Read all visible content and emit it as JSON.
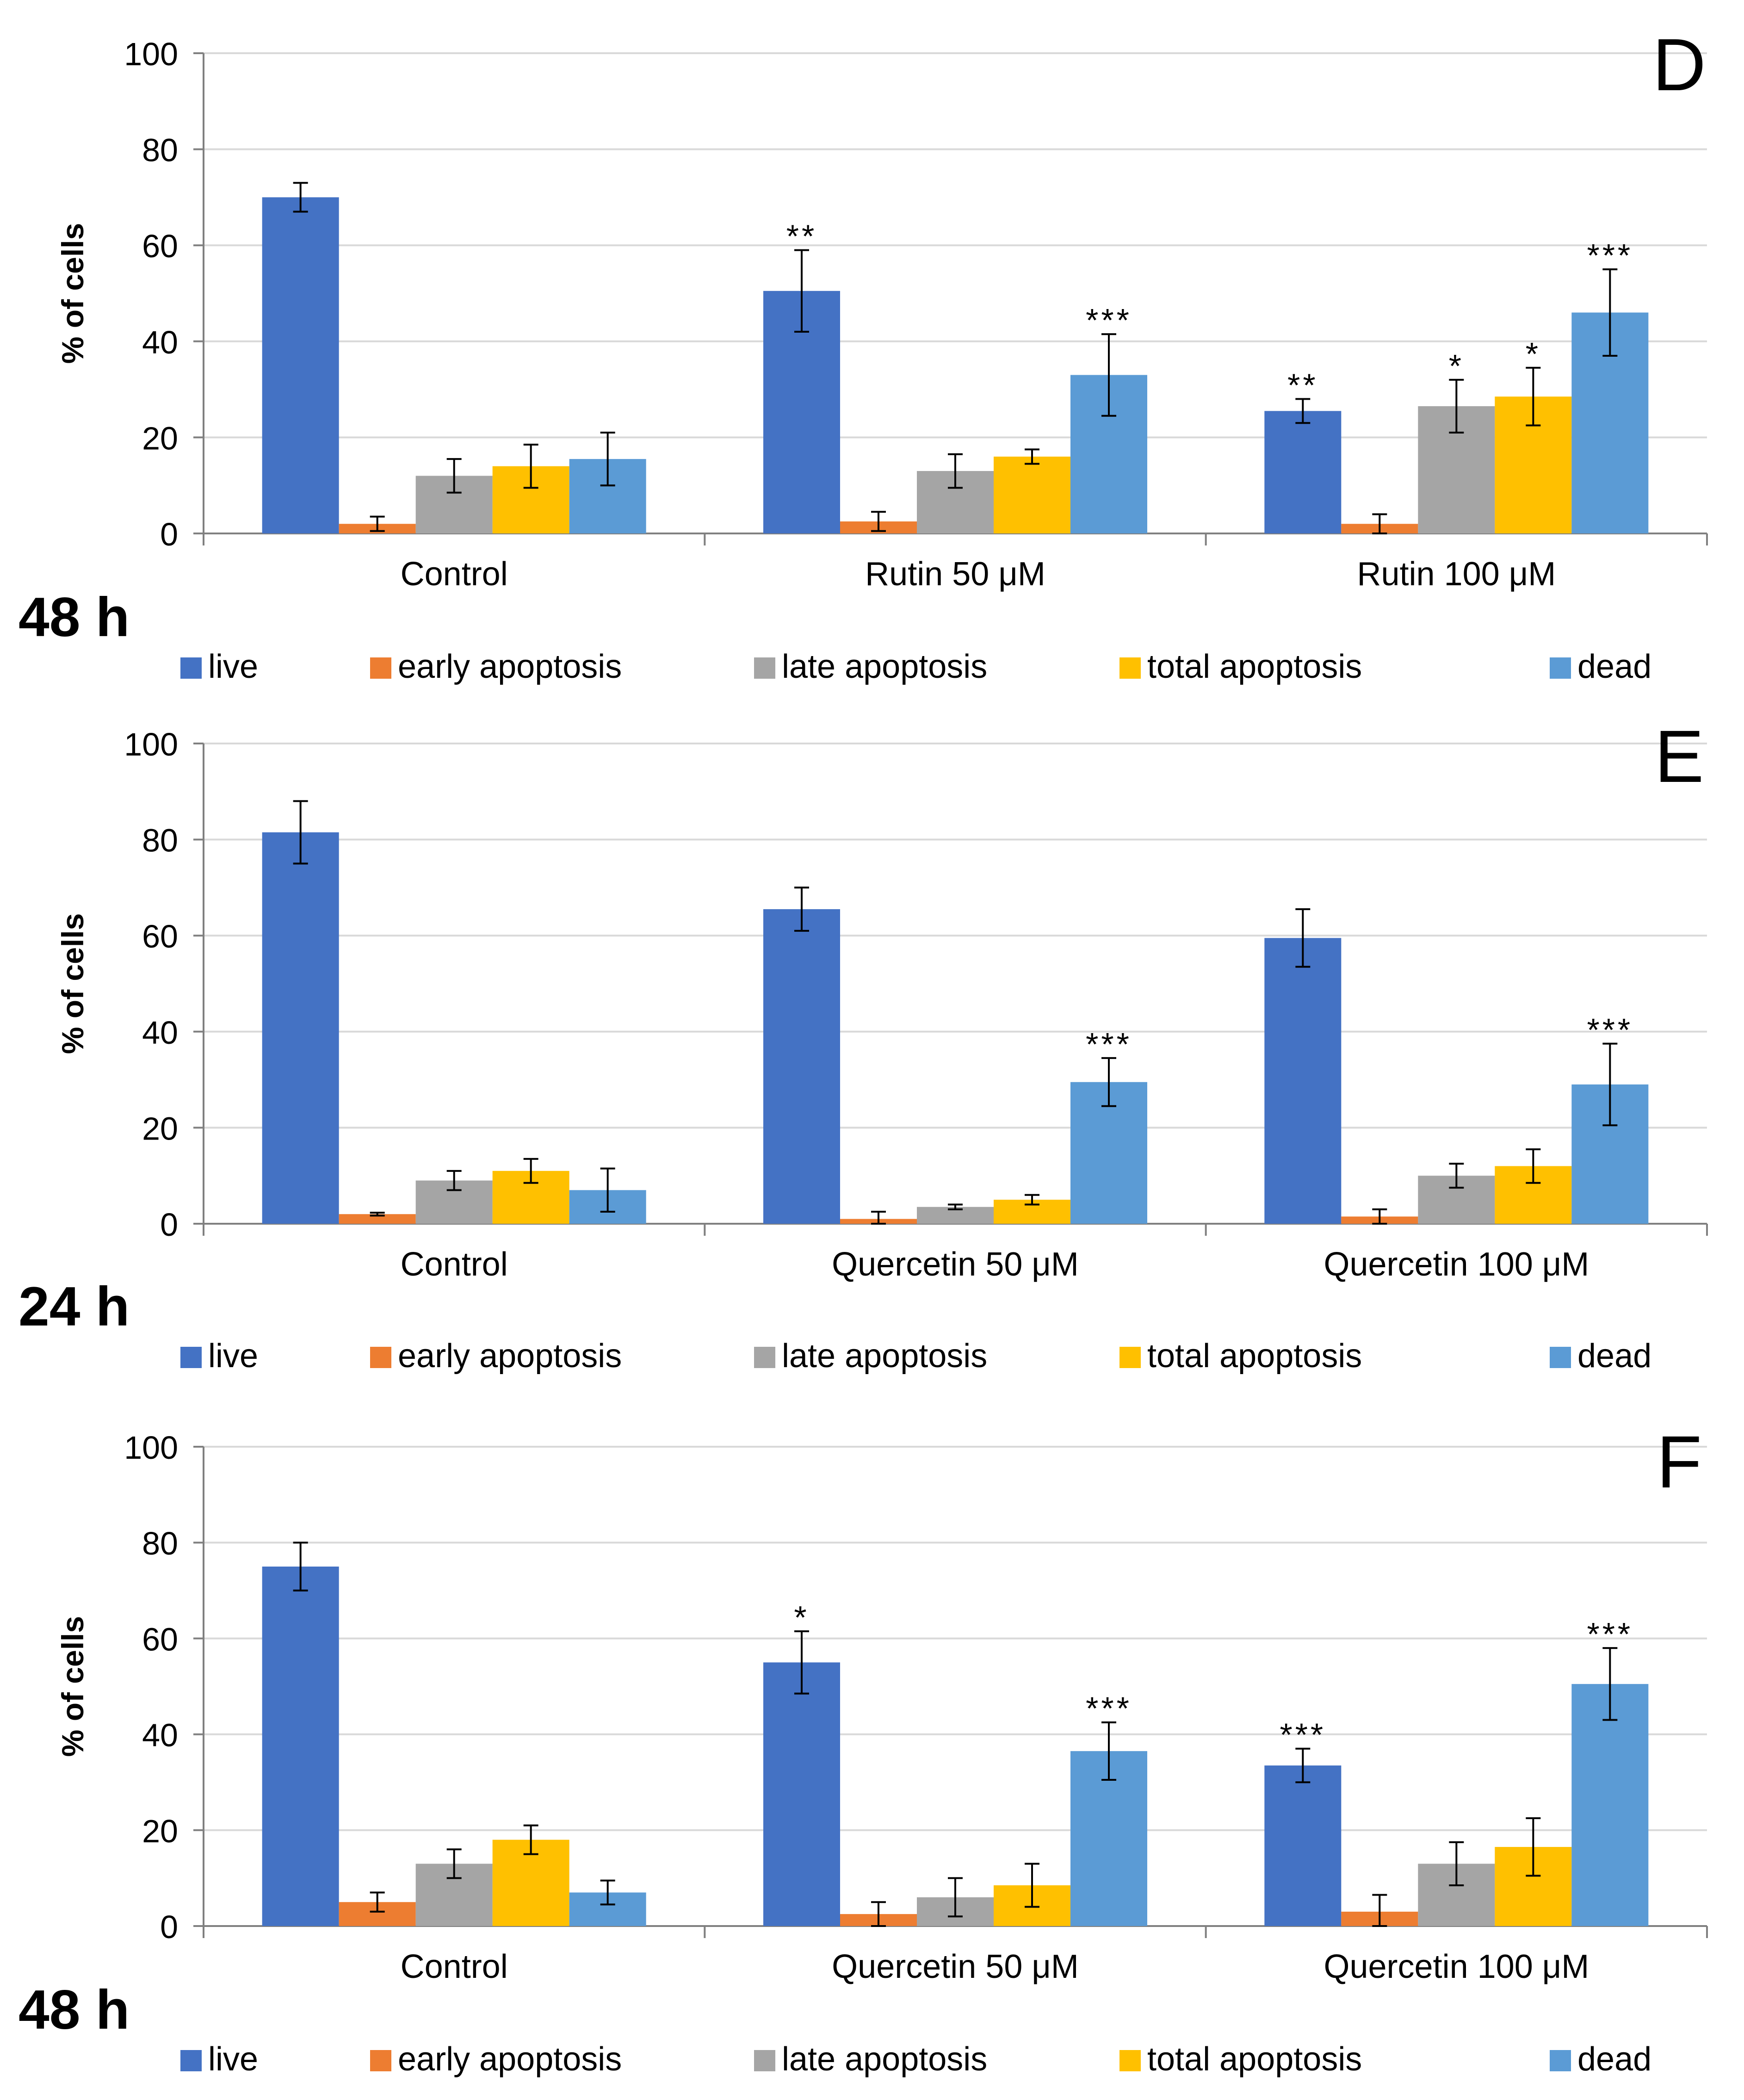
{
  "colors": {
    "live": "#4472C4",
    "early": "#ED7D31",
    "late": "#A5A5A5",
    "total": "#FFC000",
    "dead": "#5B9BD5",
    "grid": "#D9D9D9",
    "axis": "#808080",
    "text": "#000000"
  },
  "chart_data": [
    {
      "type": "bar",
      "panel_label": "D",
      "time_label": "48 h",
      "ylabel": "% of cells",
      "ylim": [
        0,
        100
      ],
      "yticks": [
        "0",
        "20",
        "40",
        "60",
        "80",
        "100"
      ],
      "categories": [
        "Control",
        "Rutin 50 μM",
        "Rutin 100 μM"
      ],
      "legend": [
        "live",
        "early apoptosis",
        "late apoptosis",
        "total apoptosis",
        "dead"
      ],
      "series": [
        {
          "name": "live",
          "values": [
            70,
            50.5,
            25.5
          ],
          "errors": [
            3,
            8.5,
            2.5
          ],
          "sig": [
            "",
            "**",
            "**"
          ]
        },
        {
          "name": "early apoptosis",
          "values": [
            2,
            2.5,
            2
          ],
          "errors": [
            1.5,
            2,
            2
          ],
          "sig": [
            "",
            "",
            ""
          ]
        },
        {
          "name": "late apoptosis",
          "values": [
            12,
            13,
            26.5
          ],
          "errors": [
            3.5,
            3.5,
            5.5
          ],
          "sig": [
            "",
            "",
            "*"
          ]
        },
        {
          "name": "total apoptosis",
          "values": [
            14,
            16,
            28.5
          ],
          "errors": [
            4.5,
            1.5,
            6
          ],
          "sig": [
            "",
            "",
            "*"
          ]
        },
        {
          "name": "dead",
          "values": [
            15.5,
            33,
            46
          ],
          "errors": [
            5.5,
            8.5,
            9
          ],
          "sig": [
            "",
            "***",
            "***"
          ]
        }
      ]
    },
    {
      "type": "bar",
      "panel_label": "E",
      "time_label": "24 h",
      "ylabel": "% of cells",
      "ylim": [
        0,
        100
      ],
      "yticks": [
        "0",
        "20",
        "40",
        "60",
        "80",
        "100"
      ],
      "categories": [
        "Control",
        "Quercetin 50 μM",
        "Quercetin 100 μM"
      ],
      "legend": [
        "live",
        "early apoptosis",
        "late apoptosis",
        "total apoptosis",
        "dead"
      ],
      "series": [
        {
          "name": "live",
          "values": [
            81.5,
            65.5,
            59.5
          ],
          "errors": [
            6.5,
            4.5,
            6
          ],
          "sig": [
            "",
            "",
            ""
          ]
        },
        {
          "name": "early apoptosis",
          "values": [
            2,
            1,
            1.5
          ],
          "errors": [
            0.3,
            1.5,
            1.5
          ],
          "sig": [
            "",
            "",
            ""
          ]
        },
        {
          "name": "late apoptosis",
          "values": [
            9,
            3.5,
            10
          ],
          "errors": [
            2,
            0.5,
            2.5
          ],
          "sig": [
            "",
            "",
            ""
          ]
        },
        {
          "name": "total apoptosis",
          "values": [
            11,
            5,
            12
          ],
          "errors": [
            2.5,
            1,
            3.5
          ],
          "sig": [
            "",
            "",
            ""
          ]
        },
        {
          "name": "dead",
          "values": [
            7,
            29.5,
            29
          ],
          "errors": [
            4.5,
            5,
            8.5
          ],
          "sig": [
            "",
            "***",
            "***"
          ]
        }
      ]
    },
    {
      "type": "bar",
      "panel_label": "F",
      "time_label": "48 h",
      "ylabel": "% of cells",
      "ylim": [
        0,
        100
      ],
      "yticks": [
        "0",
        "20",
        "40",
        "60",
        "80",
        "100"
      ],
      "categories": [
        "Control",
        "Quercetin 50 μM",
        "Quercetin 100 μM"
      ],
      "legend": [
        "live",
        "early apoptosis",
        "late apoptosis",
        "total apoptosis",
        "dead"
      ],
      "series": [
        {
          "name": "live",
          "values": [
            75,
            55,
            33.5
          ],
          "errors": [
            5,
            6.5,
            3.5
          ],
          "sig": [
            "",
            "*",
            "***"
          ]
        },
        {
          "name": "early apoptosis",
          "values": [
            5,
            2.5,
            3
          ],
          "errors": [
            2,
            2.5,
            3.5
          ],
          "sig": [
            "",
            "",
            ""
          ]
        },
        {
          "name": "late apoptosis",
          "values": [
            13,
            6,
            13
          ],
          "errors": [
            3,
            4,
            4.5
          ],
          "sig": [
            "",
            "",
            ""
          ]
        },
        {
          "name": "total apoptosis",
          "values": [
            18,
            8.5,
            16.5
          ],
          "errors": [
            3,
            4.5,
            6
          ],
          "sig": [
            "",
            "",
            ""
          ]
        },
        {
          "name": "dead",
          "values": [
            7,
            36.5,
            50.5
          ],
          "errors": [
            2.5,
            6,
            7.5
          ],
          "sig": [
            "",
            "***",
            "***"
          ]
        }
      ]
    }
  ]
}
